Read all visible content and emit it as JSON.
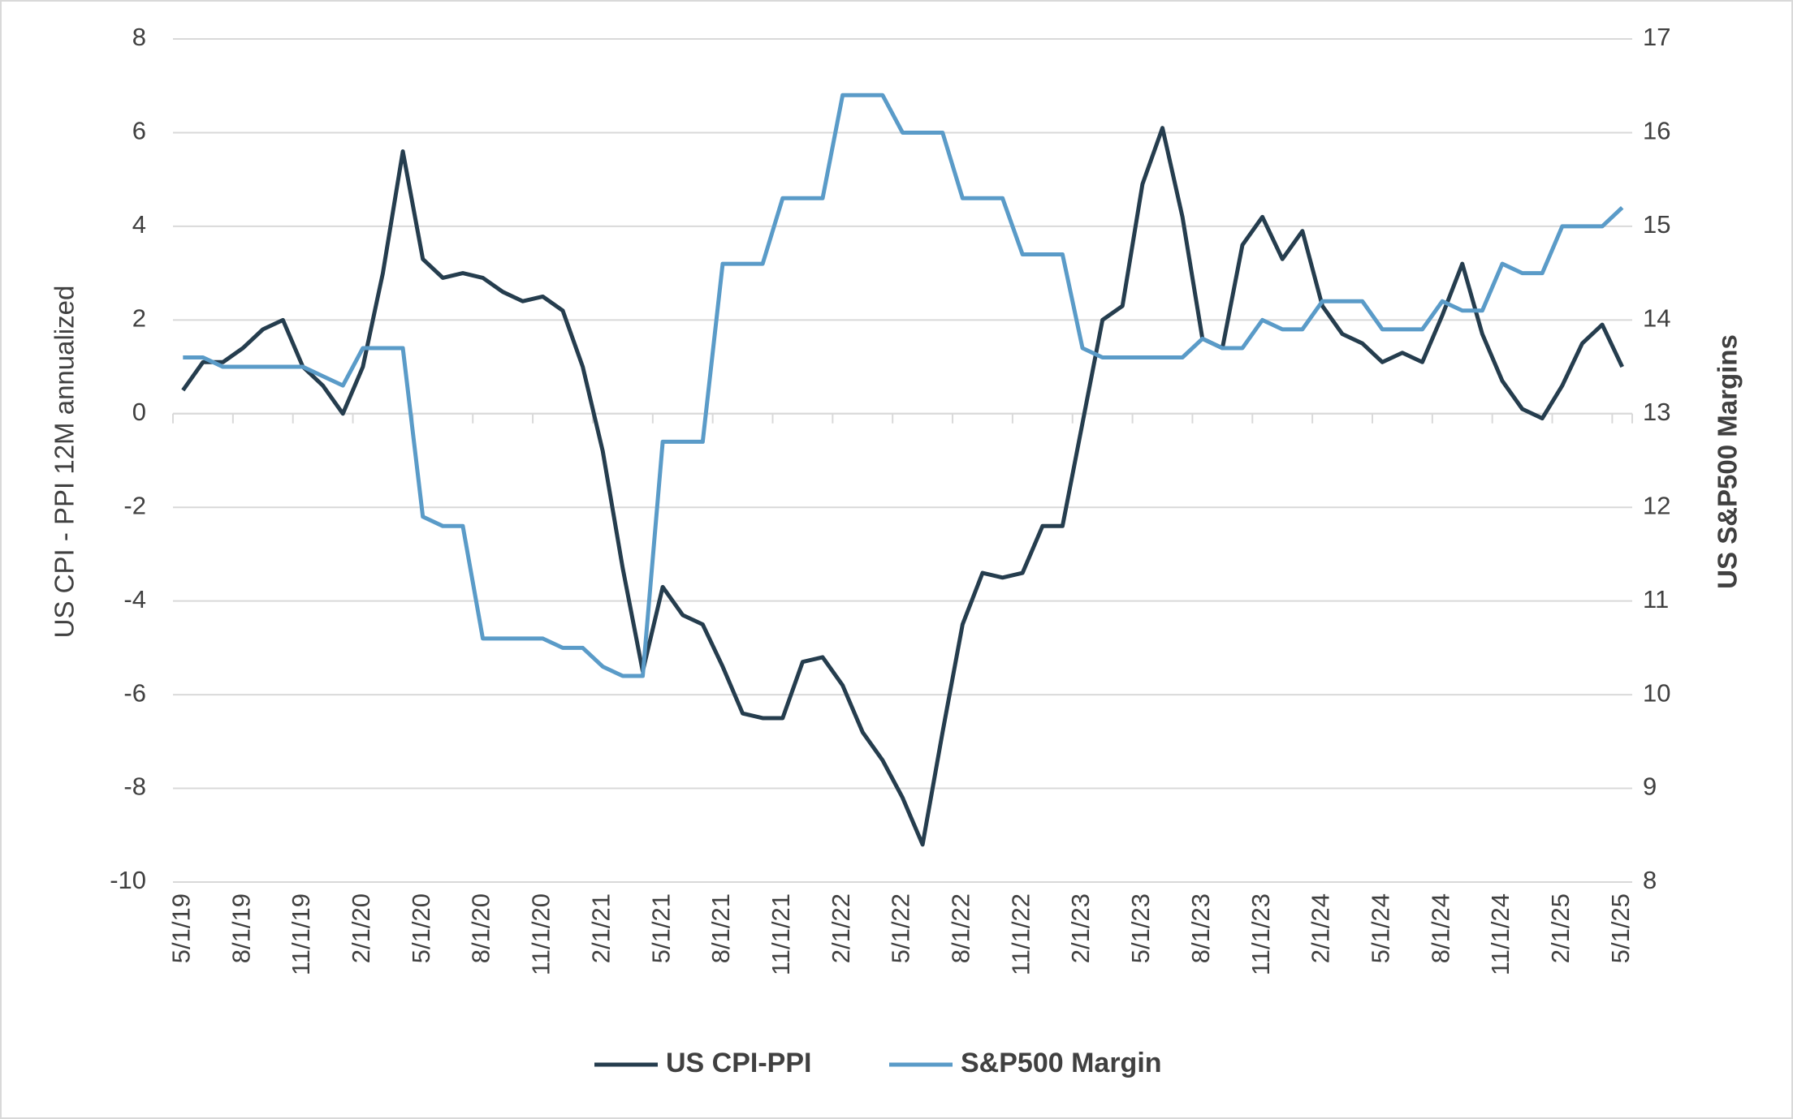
{
  "chart_data": {
    "type": "line",
    "ylabel": "US CPI - PPI 12M annualized",
    "y2label": "US S&P500 Margins",
    "categories": [
      "5/1/19",
      null,
      null,
      "8/1/19",
      null,
      null,
      "11/1/19",
      null,
      null,
      "2/1/20",
      null,
      null,
      "5/1/20",
      null,
      null,
      "8/1/20",
      null,
      null,
      "11/1/20",
      null,
      null,
      "2/1/21",
      null,
      null,
      "5/1/21",
      null,
      null,
      "8/1/21",
      null,
      null,
      "11/1/21",
      null,
      null,
      "2/1/22",
      null,
      null,
      "5/1/22",
      null,
      null,
      "8/1/22",
      null,
      null,
      "11/1/22",
      null,
      null,
      "2/1/23",
      null,
      null,
      "5/1/23",
      null,
      null,
      "8/1/23",
      null,
      null,
      "11/1/23",
      null,
      null,
      "2/1/24",
      null,
      null,
      "5/1/24",
      null,
      null,
      "8/1/24",
      null,
      null,
      "11/1/24",
      null,
      null,
      "2/1/25",
      null,
      null,
      "5/1/25"
    ],
    "series": [
      {
        "name": "US CPI-PPI",
        "color": "#253d4e",
        "axis": "y",
        "values": [
          0.5,
          1.1,
          1.1,
          1.4,
          1.8,
          2.0,
          1.0,
          0.6,
          0.0,
          1.0,
          3.0,
          5.6,
          3.3,
          2.9,
          3.0,
          2.9,
          2.6,
          2.4,
          2.5,
          2.2,
          1.0,
          -0.8,
          -3.3,
          -5.5,
          -3.7,
          -4.3,
          -4.5,
          -5.4,
          -6.4,
          -6.5,
          -6.5,
          -5.3,
          -5.2,
          -5.8,
          -6.8,
          -7.4,
          -8.2,
          -9.2,
          -6.8,
          -4.5,
          -3.4,
          -3.5,
          -3.4,
          -2.4,
          -2.4,
          -0.2,
          2.0,
          2.3,
          4.9,
          6.1,
          4.2,
          1.6,
          1.4,
          3.6,
          4.2,
          3.3,
          3.9,
          2.3,
          1.7,
          1.5,
          1.1,
          1.3,
          1.1,
          2.1,
          3.2,
          1.7,
          0.7,
          0.1,
          -0.1,
          0.6,
          1.5,
          1.9,
          1.0
        ]
      },
      {
        "name": "S&P500 Margin",
        "color": "#5a9bc8",
        "axis": "y2",
        "values": [
          13.6,
          13.6,
          13.5,
          13.5,
          13.5,
          13.5,
          13.5,
          13.4,
          13.3,
          13.7,
          13.7,
          13.7,
          11.9,
          11.8,
          11.8,
          10.6,
          10.6,
          10.6,
          10.6,
          10.5,
          10.5,
          10.3,
          10.2,
          10.2,
          12.7,
          12.7,
          12.7,
          14.6,
          14.6,
          14.6,
          15.3,
          15.3,
          15.3,
          16.4,
          16.4,
          16.4,
          16.0,
          16.0,
          16.0,
          15.3,
          15.3,
          15.3,
          14.7,
          14.7,
          14.7,
          13.7,
          13.6,
          13.6,
          13.6,
          13.6,
          13.6,
          13.8,
          13.7,
          13.7,
          14.0,
          13.9,
          13.9,
          14.2,
          14.2,
          14.2,
          13.9,
          13.9,
          13.9,
          14.2,
          14.1,
          14.1,
          14.6,
          14.5,
          14.5,
          15.0,
          15.0,
          15.0,
          15.2
        ]
      }
    ],
    "ylim": [
      -10,
      8
    ],
    "yticks": [
      -10,
      -8,
      -6,
      -4,
      -2,
      0,
      2,
      4,
      6,
      8
    ],
    "y2lim": [
      8,
      17
    ],
    "y2ticks": [
      8,
      9,
      10,
      11,
      12,
      13,
      14,
      15,
      16,
      17
    ],
    "grid": true,
    "legend": "bottom"
  }
}
